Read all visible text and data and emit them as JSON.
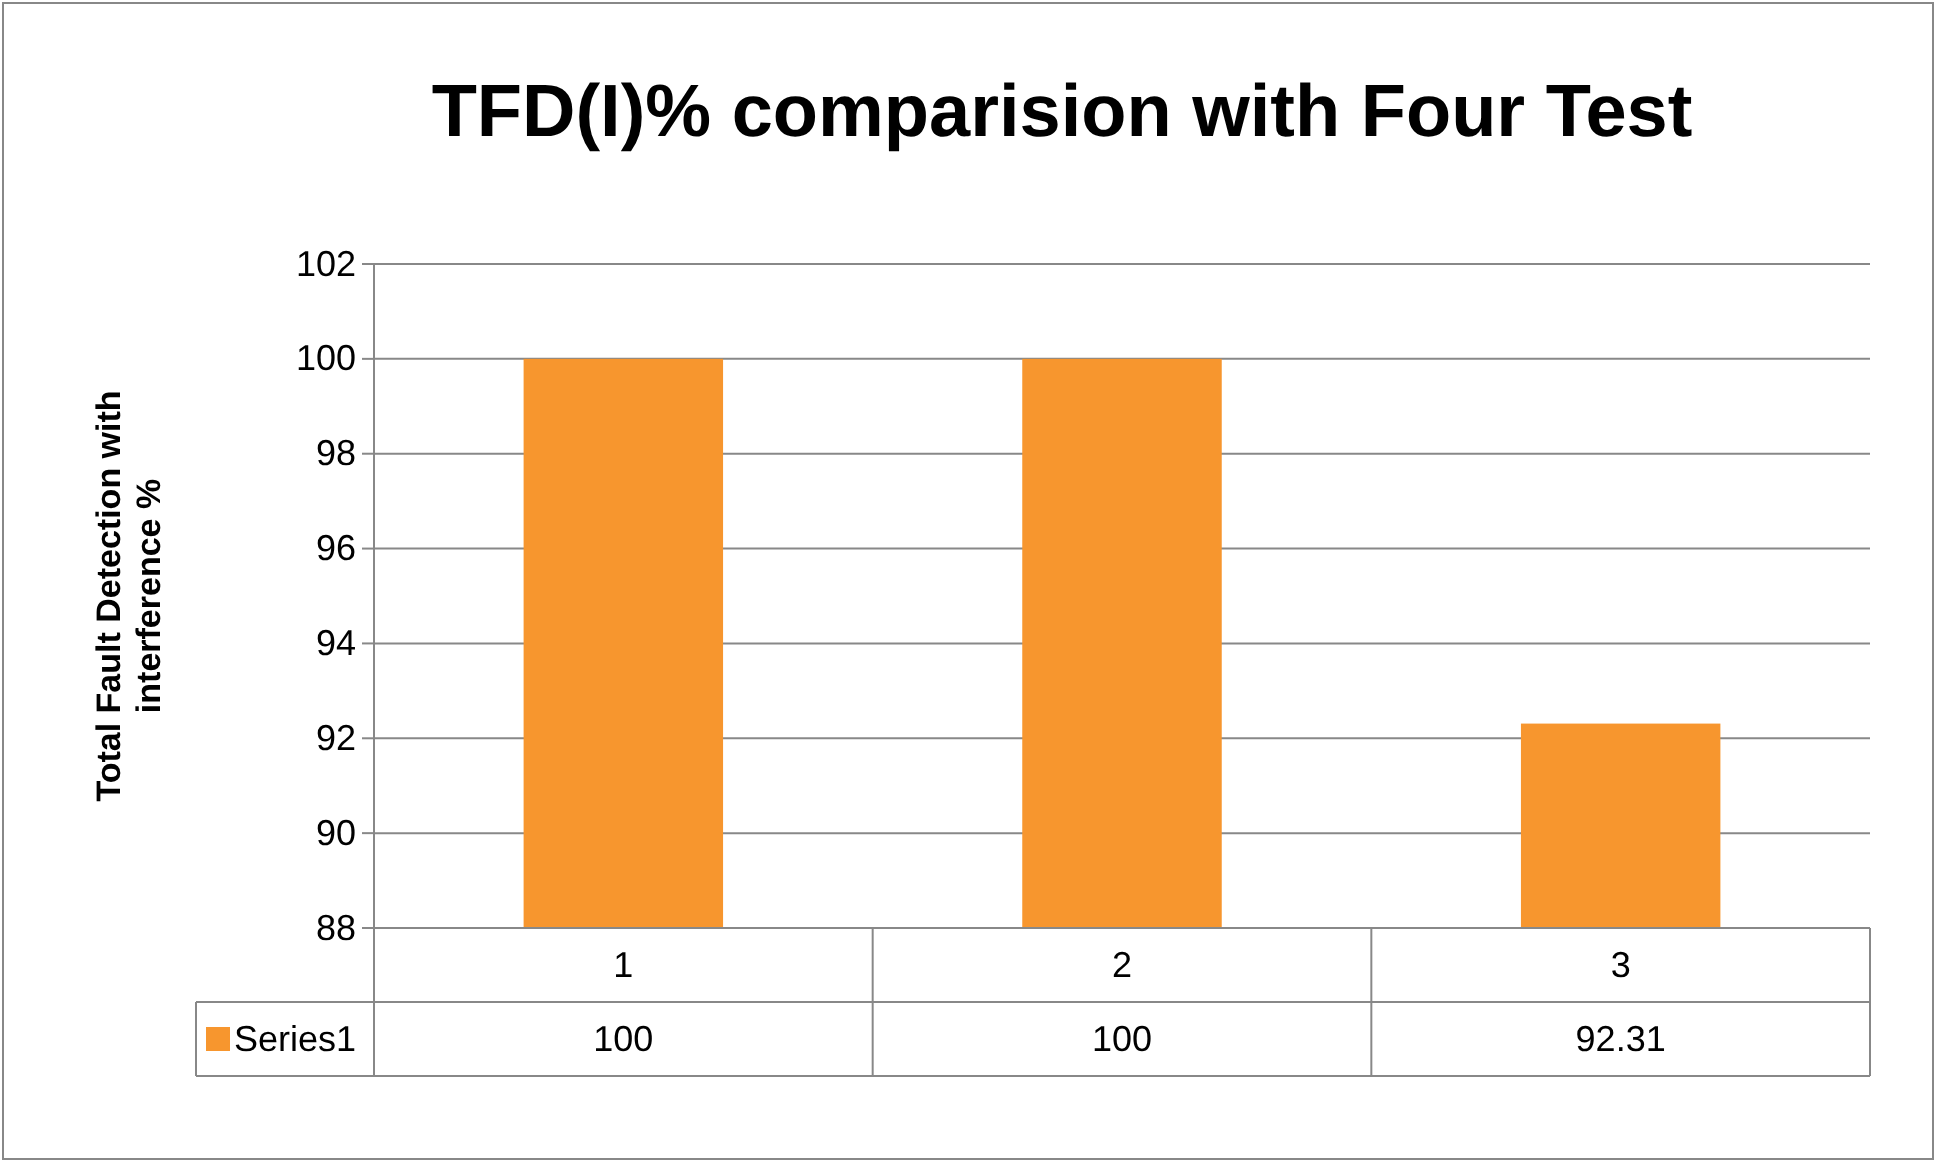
{
  "chart_data": {
    "type": "bar",
    "title": "TFD(I)% comparision with Four Test",
    "ylabel": "Total Fault Detection with interference %",
    "categories": [
      "1",
      "2",
      "3"
    ],
    "series": [
      {
        "name": "Series1",
        "color": "#f7962e",
        "values": [
          100,
          100,
          92.31
        ]
      }
    ],
    "ylim": [
      88,
      102
    ],
    "yticks": [
      88,
      90,
      92,
      94,
      96,
      98,
      100,
      102
    ],
    "grid": "y",
    "data_labels": true,
    "legend": "bottom"
  }
}
